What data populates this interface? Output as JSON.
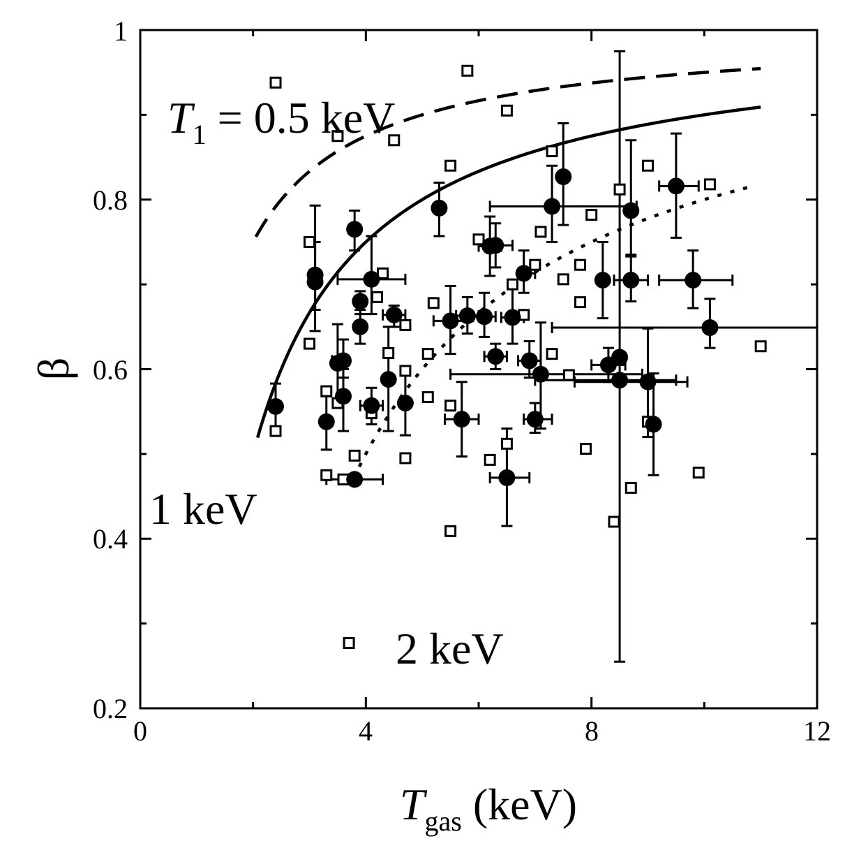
{
  "chart_data": {
    "type": "scatter",
    "xlabel": {
      "main": "T",
      "sub": "gas",
      "suffix": " (keV)"
    },
    "ylabel": "β",
    "xlim": [
      0,
      12
    ],
    "ylim": [
      0.2,
      1.0
    ],
    "xticks": [
      0,
      4,
      8,
      12
    ],
    "xtick_labels": [
      "0",
      "4",
      "8",
      "12"
    ],
    "yticks": [
      0.2,
      0.4,
      0.6,
      0.8,
      1.0
    ],
    "ytick_labels": [
      "0.2",
      "0.4",
      "0.6",
      "0.8",
      "1"
    ],
    "annotations": [
      {
        "id": "t1",
        "italic": "T",
        "sub": "1",
        "text": " = 0.5 keV",
        "x": 0.5,
        "y": 0.91
      },
      {
        "id": "one",
        "text": "1 keV",
        "x": 0.2,
        "y": 0.43
      },
      {
        "id": "two",
        "text": "2 keV",
        "x": 4.6,
        "y": 0.26
      }
    ],
    "curves": [
      {
        "id": "dashed",
        "style": "dashed",
        "T1": 0.5,
        "xrange": [
          2.05,
          11.0
        ]
      },
      {
        "id": "solid",
        "style": "solid",
        "T1": 1.0,
        "xrange": [
          2.08,
          11.0
        ]
      },
      {
        "id": "dotted",
        "style": "dotted",
        "T1": 2.0,
        "xrange": [
          3.78,
          10.9
        ]
      }
    ],
    "series": [
      {
        "marker": "filled-circle",
        "points": [
          {
            "x": 2.4,
            "y": 0.556,
            "ey": [
              0.53,
              0.583
            ]
          },
          {
            "x": 3.1,
            "y": 0.711,
            "ex": [
              3.0,
              3.2
            ],
            "ey": [
              0.67,
              0.75
            ]
          },
          {
            "x": 3.1,
            "y": 0.703,
            "ey": [
              0.645,
              0.793
            ]
          },
          {
            "x": 3.3,
            "y": 0.538,
            "ey": [
              0.505,
              0.568
            ]
          },
          {
            "x": 3.5,
            "y": 0.607,
            "ey": [
              0.56,
              0.653
            ]
          },
          {
            "x": 3.6,
            "y": 0.61,
            "ex": [
              3.4,
              3.7
            ],
            "ey": [
              0.59,
              0.635
            ]
          },
          {
            "x": 3.6,
            "y": 0.568,
            "ey": [
              0.527,
              0.6
            ]
          },
          {
            "x": 3.8,
            "y": 0.765,
            "ex": [
              3.7,
              3.9
            ],
            "ey": [
              0.74,
              0.787
            ]
          },
          {
            "x": 3.8,
            "y": 0.47,
            "ex": [
              3.3,
              4.3
            ]
          },
          {
            "x": 3.9,
            "y": 0.68,
            "ex": [
              3.8,
              4.0
            ],
            "ey": [
              0.665,
              0.692
            ]
          },
          {
            "x": 3.9,
            "y": 0.65,
            "ey": [
              0.63,
              0.67
            ]
          },
          {
            "x": 4.1,
            "y": 0.706,
            "ex": [
              3.5,
              4.7
            ],
            "ey": [
              0.665,
              0.757
            ]
          },
          {
            "x": 4.1,
            "y": 0.557,
            "ex": [
              3.9,
              4.3
            ],
            "ey": [
              0.535,
              0.578
            ]
          },
          {
            "x": 4.4,
            "y": 0.588,
            "ey": [
              0.527,
              0.65
            ]
          },
          {
            "x": 4.5,
            "y": 0.664,
            "ex": [
              4.3,
              4.7
            ],
            "ey": [
              0.65,
              0.675
            ]
          },
          {
            "x": 4.7,
            "y": 0.56,
            "ey": [
              0.522,
              0.598
            ]
          },
          {
            "x": 5.3,
            "y": 0.79,
            "ey": [
              0.757,
              0.82
            ]
          },
          {
            "x": 5.5,
            "y": 0.657,
            "ex": [
              5.2,
              5.8
            ],
            "ey": [
              0.618,
              0.698
            ]
          },
          {
            "x": 5.7,
            "y": 0.541,
            "ex": [
              5.4,
              6.0
            ],
            "ey": [
              0.497,
              0.585
            ]
          },
          {
            "x": 5.8,
            "y": 0.663,
            "ex": [
              5.6,
              6.0
            ],
            "ey": [
              0.642,
              0.685
            ]
          },
          {
            "x": 6.1,
            "y": 0.662,
            "ex": [
              5.9,
              6.3
            ],
            "ey": [
              0.638,
              0.69
            ]
          },
          {
            "x": 6.2,
            "y": 0.745,
            "ex": [
              6.0,
              6.4
            ],
            "ey": [
              0.71,
              0.78
            ]
          },
          {
            "x": 6.3,
            "y": 0.615,
            "ex": [
              6.1,
              6.5
            ],
            "ey": [
              0.6,
              0.63
            ]
          },
          {
            "x": 6.3,
            "y": 0.746,
            "ex": [
              6.1,
              6.6
            ],
            "ey": [
              0.72,
              0.772
            ]
          },
          {
            "x": 6.5,
            "y": 0.472,
            "ex": [
              6.2,
              6.9
            ],
            "ey": [
              0.415,
              0.53
            ]
          },
          {
            "x": 6.6,
            "y": 0.661,
            "ex": [
              6.4,
              6.8
            ],
            "ey": [
              0.63,
              0.695
            ]
          },
          {
            "x": 6.8,
            "y": 0.713,
            "ex": [
              6.7,
              7.0
            ],
            "ey": [
              0.69,
              0.74
            ]
          },
          {
            "x": 6.9,
            "y": 0.61,
            "ex": [
              6.7,
              7.1
            ],
            "ey": [
              0.59,
              0.633
            ]
          },
          {
            "x": 7.0,
            "y": 0.541,
            "ex": [
              6.8,
              7.3
            ],
            "ey": [
              0.525,
              0.56
            ]
          },
          {
            "x": 7.1,
            "y": 0.594,
            "ex": [
              5.5,
              8.9
            ],
            "ey": [
              0.53,
              0.655
            ]
          },
          {
            "x": 7.3,
            "y": 0.792,
            "ex": [
              6.2,
              8.8
            ],
            "ey": [
              0.75,
              0.84
            ]
          },
          {
            "x": 7.5,
            "y": 0.827,
            "ey": [
              0.77,
              0.89
            ]
          },
          {
            "x": 8.2,
            "y": 0.705,
            "ey": [
              0.66,
              0.75
            ]
          },
          {
            "x": 8.3,
            "y": 0.605,
            "ex": [
              8.0,
              8.6
            ],
            "ey": [
              0.585,
              0.625
            ]
          },
          {
            "x": 8.5,
            "y": 0.614,
            "ey": [
              0.255,
              0.975
            ]
          },
          {
            "x": 8.5,
            "y": 0.587,
            "ex": [
              7.0,
              9.5
            ]
          },
          {
            "x": 8.7,
            "y": 0.705,
            "ex": [
              8.4,
              9.0
            ],
            "ey": [
              0.68,
              0.733
            ]
          },
          {
            "x": 8.7,
            "y": 0.787,
            "ey": [
              0.735,
              0.87
            ]
          },
          {
            "x": 9.0,
            "y": 0.585,
            "ex": [
              7.7,
              9.7
            ],
            "ey": [
              0.52,
              0.648
            ]
          },
          {
            "x": 9.1,
            "y": 0.535,
            "ey": [
              0.475,
              0.595
            ]
          },
          {
            "x": 9.5,
            "y": 0.816,
            "ex": [
              9.2,
              9.9
            ],
            "ey": [
              0.755,
              0.878
            ]
          },
          {
            "x": 9.8,
            "y": 0.705,
            "ex": [
              9.2,
              10.5
            ],
            "ey": [
              0.672,
              0.74
            ]
          },
          {
            "x": 10.1,
            "y": 0.649,
            "ex": [
              7.3,
              12.0
            ],
            "ey": [
              0.625,
              0.683
            ]
          }
        ]
      },
      {
        "marker": "open-square",
        "points": [
          {
            "x": 2.4,
            "y": 0.938
          },
          {
            "x": 2.4,
            "y": 0.527
          },
          {
            "x": 3.0,
            "y": 0.75
          },
          {
            "x": 3.0,
            "y": 0.63
          },
          {
            "x": 3.3,
            "y": 0.574
          },
          {
            "x": 3.3,
            "y": 0.475
          },
          {
            "x": 3.5,
            "y": 0.875
          },
          {
            "x": 3.5,
            "y": 0.56
          },
          {
            "x": 3.6,
            "y": 0.47
          },
          {
            "x": 3.7,
            "y": 0.277
          },
          {
            "x": 3.8,
            "y": 0.498
          },
          {
            "x": 4.1,
            "y": 0.548
          },
          {
            "x": 4.2,
            "y": 0.685
          },
          {
            "x": 4.3,
            "y": 0.713
          },
          {
            "x": 4.4,
            "y": 0.619
          },
          {
            "x": 4.5,
            "y": 0.87
          },
          {
            "x": 4.7,
            "y": 0.652
          },
          {
            "x": 4.7,
            "y": 0.598
          },
          {
            "x": 4.7,
            "y": 0.495
          },
          {
            "x": 5.1,
            "y": 0.618
          },
          {
            "x": 5.1,
            "y": 0.567
          },
          {
            "x": 5.2,
            "y": 0.678
          },
          {
            "x": 5.5,
            "y": 0.84
          },
          {
            "x": 5.5,
            "y": 0.557
          },
          {
            "x": 5.5,
            "y": 0.409
          },
          {
            "x": 5.8,
            "y": 0.952
          },
          {
            "x": 6.0,
            "y": 0.753
          },
          {
            "x": 6.2,
            "y": 0.493
          },
          {
            "x": 6.5,
            "y": 0.905
          },
          {
            "x": 6.5,
            "y": 0.512
          },
          {
            "x": 6.6,
            "y": 0.7
          },
          {
            "x": 6.8,
            "y": 0.664
          },
          {
            "x": 7.0,
            "y": 0.723
          },
          {
            "x": 7.1,
            "y": 0.762
          },
          {
            "x": 7.3,
            "y": 0.857
          },
          {
            "x": 7.3,
            "y": 0.618
          },
          {
            "x": 7.5,
            "y": 0.706
          },
          {
            "x": 7.6,
            "y": 0.593
          },
          {
            "x": 7.8,
            "y": 0.723
          },
          {
            "x": 7.8,
            "y": 0.679
          },
          {
            "x": 7.9,
            "y": 0.506
          },
          {
            "x": 8.0,
            "y": 0.782
          },
          {
            "x": 8.4,
            "y": 0.42
          },
          {
            "x": 8.5,
            "y": 0.812
          },
          {
            "x": 8.7,
            "y": 0.46
          },
          {
            "x": 9.0,
            "y": 0.84
          },
          {
            "x": 9.0,
            "y": 0.538
          },
          {
            "x": 9.9,
            "y": 0.478
          },
          {
            "x": 10.1,
            "y": 0.818
          },
          {
            "x": 11.0,
            "y": 0.627
          }
        ]
      }
    ]
  }
}
